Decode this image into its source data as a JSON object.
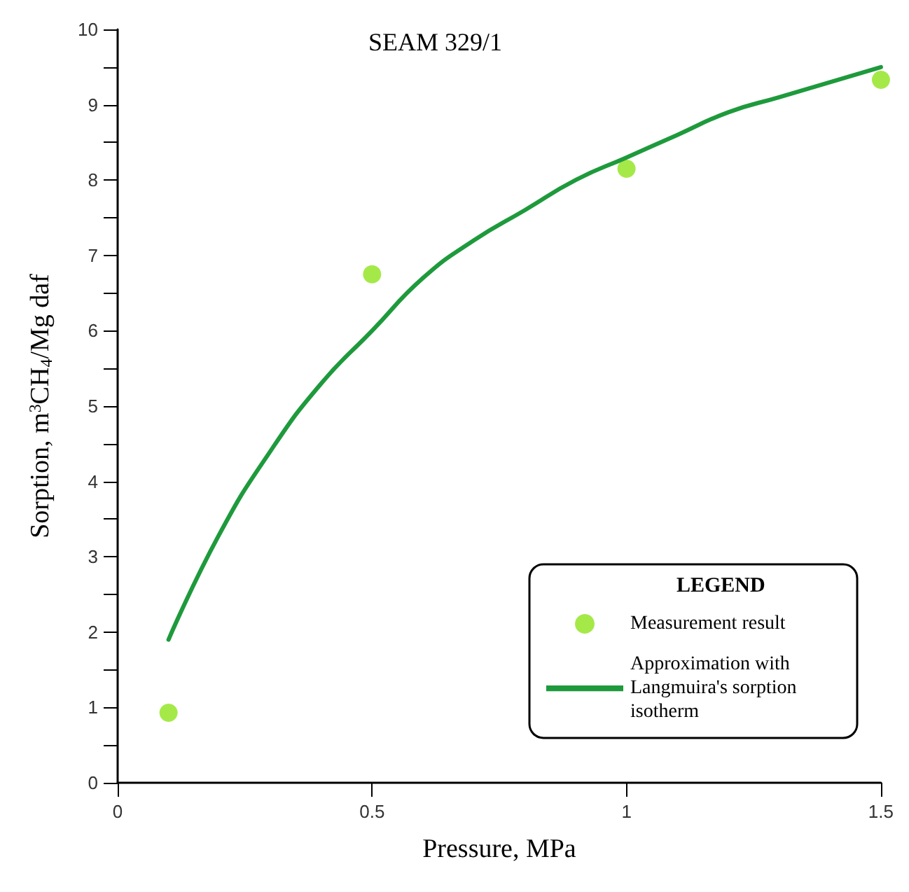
{
  "chart_data": {
    "type": "scatter",
    "title": "SEAM 329/1",
    "xlabel": "Pressure, MPa",
    "ylabel": "Sorption, m$^{3}$CH$_{4}$/Mg daf",
    "legend_title": "LEGEND",
    "xlim": [
      0,
      1.5
    ],
    "xticks": [
      0,
      0.5,
      1,
      1.5
    ],
    "ylim": [
      0,
      10
    ],
    "yticks": [
      0,
      {
        "value": 0.5,
        "label": null
      },
      1,
      {
        "value": 1.5,
        "label": null
      },
      2,
      {
        "value": 2.5,
        "label": null
      },
      3,
      {
        "value": 3.5,
        "label": null
      },
      4,
      {
        "value": 4.5,
        "label": null
      },
      5,
      {
        "value": 5.5,
        "label": null
      },
      6,
      {
        "value": 6.5,
        "label": null
      },
      7,
      {
        "value": 7.5,
        "label": null
      },
      8,
      {
        "value": 8.5,
        "label": null
      },
      9,
      {
        "value": 9.5,
        "label": null
      },
      10
    ],
    "grid": false,
    "legend": "bottom right",
    "marker": "circle",
    "series": [
      {
        "name": "Measurement result",
        "color": "#8fe31c",
        "x": [
          0.1,
          0.5,
          1.0,
          1.5
        ],
        "values": [
          0.93,
          6.75,
          8.15,
          9.33
        ]
      },
      {
        "name": "Approximation with Langmuira's sorption isotherm",
        "type": "line",
        "color": "#1e9a3c",
        "line_style": "solid",
        "marker": "none",
        "x": [
          0.1,
          0.2,
          0.3,
          0.4,
          0.5,
          0.6,
          0.7,
          0.8,
          0.9,
          1.0,
          1.1,
          1.2,
          1.3,
          1.4,
          1.5
        ],
        "values": [
          1.9,
          3.3,
          4.4,
          5.3,
          6.0,
          6.7,
          7.2,
          7.6,
          8.0,
          8.3,
          8.6,
          8.9,
          9.1,
          9.3,
          9.5
        ]
      }
    ]
  }
}
